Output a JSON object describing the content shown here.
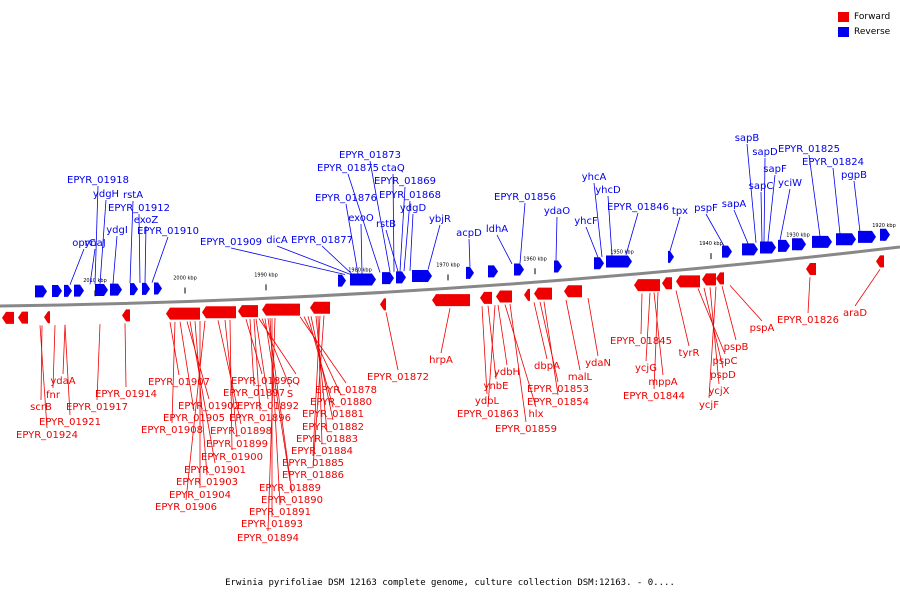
{
  "legend": {
    "forward_label": "Forward",
    "reverse_label": "Reverse",
    "forward_color": "#ee0000",
    "reverse_color": "#0000ee"
  },
  "caption": "Erwinia pyrifoliae DSM 12163 complete genome, culture collection DSM:12163. - 0....",
  "ruler_ticks": [
    "2010 kbp",
    "2000 kbp",
    "1990 kbp",
    "1980 kbp",
    "1970 kbp",
    "1960 kbp",
    "1950 kbp",
    "1940 kbp",
    "1930 kbp",
    "1920 kbp"
  ],
  "reverse_genes": [
    "EPYR_01918",
    "ydgH",
    "rstA",
    "EPYR_01912",
    "exoZ",
    "EPYR_01910",
    "oprC",
    "ynaJ",
    "ydgI",
    "EPYR_01909",
    "dicA",
    "EPYR_01877",
    "EPYR_01876",
    "exoO",
    "EPYR_01875",
    "EPYR_01873",
    "ctaQ",
    "EPYR_01869",
    "EPYR_01868",
    "ydgD",
    "rstB",
    "ybjR",
    "acpD",
    "ldhA",
    "EPYR_01856",
    "ydaO",
    "yhcF",
    "yhcA",
    "yhcD",
    "EPYR_01846",
    "tpx",
    "pspF",
    "sapA",
    "sapB",
    "sapD",
    "sapC",
    "sapF",
    "yciW",
    "EPYR_01825",
    "EPYR_01824",
    "pgpB"
  ],
  "forward_genes": [
    "EPYR_01924",
    "scrB",
    "fnr",
    "ydaA",
    "EPYR_01921",
    "EPYR_01917",
    "EPYR_01914",
    "EPYR_01907",
    "EPYR_01905",
    "EPYR_01902",
    "EPYR_01908",
    "EPYR_01901",
    "EPYR_01903",
    "EPYR_01904",
    "EPYR_01906",
    "EPYR_01898",
    "EPYR_01899",
    "EPYR_01900",
    "EPYR_01895",
    "EPYR_01897",
    "EPYR_01896",
    "EPYR_01892",
    "Q",
    "S",
    "EPYR_01889",
    "EPYR_01890",
    "EPYR_01891",
    "EPYR_01893",
    "EPYR_01894",
    "EPYR_01878",
    "EPYR_01880",
    "EPYR_01881",
    "EPYR_01882",
    "EPYR_01883",
    "EPYR_01884",
    "EPYR_01885",
    "EPYR_01886",
    "EPYR_01872",
    "hrpA",
    "ydbH",
    "ynbE",
    "ydbL",
    "EPYR_01863",
    "hlx",
    "EPYR_01859",
    "dbpA",
    "EPYR_01853",
    "EPYR_01854",
    "malL",
    "ydaN",
    "EPYR_01845",
    "ycjG",
    "mppA",
    "EPYR_01844",
    "tyrR",
    "pspC",
    "pspD",
    "ycjX",
    "ycjF",
    "pspB",
    "pspA",
    "EPYR_01826",
    "araD"
  ]
}
